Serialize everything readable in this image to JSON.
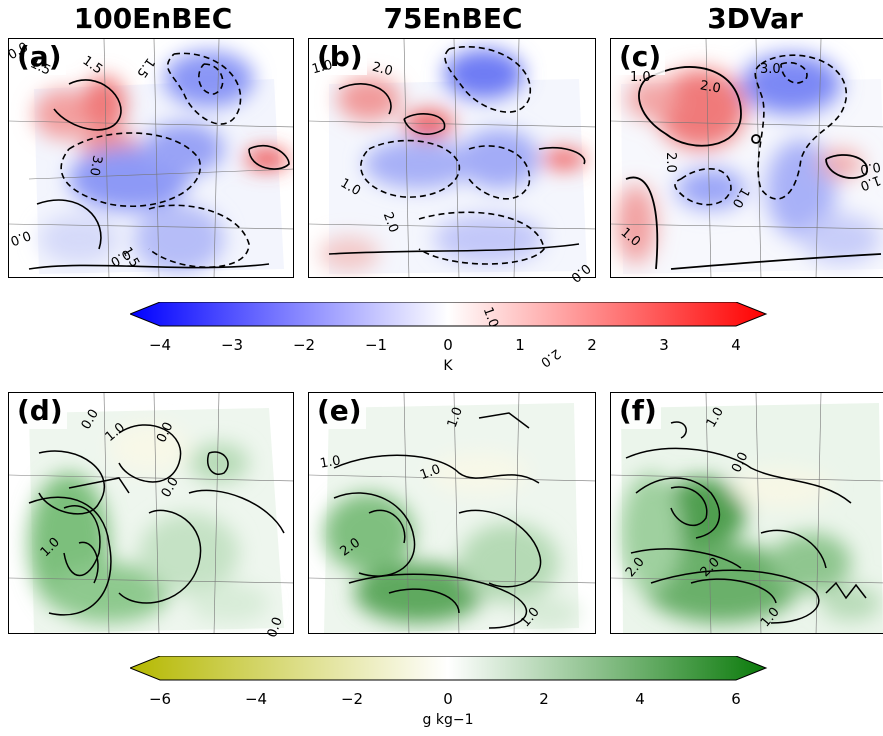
{
  "columns": [
    "100EnBEC",
    "75EnBEC",
    "3DVar"
  ],
  "panels_top": [
    "(a)",
    "(b)",
    "(c)"
  ],
  "panels_bottom": [
    "(d)",
    "(e)",
    "(f)"
  ],
  "colorbar_temperature": {
    "ticks": [
      "−4",
      "−3",
      "−2",
      "−1",
      "0",
      "1",
      "2",
      "3",
      "4"
    ],
    "label": "K",
    "colors": [
      "#0000ff",
      "#ffffff",
      "#ff0000"
    ]
  },
  "colorbar_moisture": {
    "ticks": [
      "−6",
      "−4",
      "−2",
      "0",
      "2",
      "4",
      "6"
    ],
    "label": "g kg−1",
    "colors": [
      "#b5b800",
      "#ffffff",
      "#0a7a0a"
    ]
  },
  "contour_labels": {
    "a": [
      "0.0",
      "1.5",
      "1.5",
      "3.0",
      "1.5",
      "1.5",
      "0.0",
      "0.0"
    ],
    "b": [
      "1.0",
      "2.0",
      "1.0",
      "2.0",
      "1.0",
      "2.0",
      "0.0"
    ],
    "c": [
      "1.0",
      "2.0",
      "3.0",
      "1.0",
      "2.0",
      "0.0",
      "1.0",
      "1.0"
    ],
    "d": [
      "0.0",
      "1.0",
      "0.0",
      "1.0",
      "0.0",
      "0.0"
    ],
    "e": [
      "1.0",
      "1.0",
      "2.0",
      "1.0",
      "1.0"
    ],
    "f": [
      "1.0",
      "0.0",
      "2.0",
      "2.0",
      "1.0"
    ]
  }
}
